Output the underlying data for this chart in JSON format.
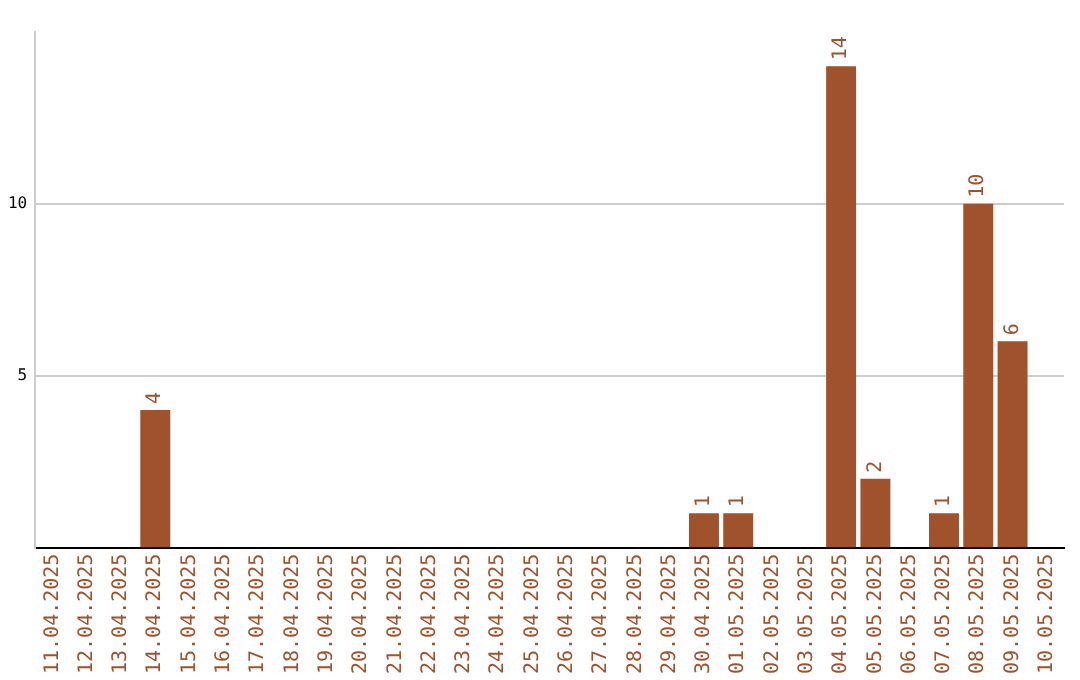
{
  "chart_data": {
    "type": "bar",
    "categories": [
      "11.04.2025",
      "12.04.2025",
      "13.04.2025",
      "14.04.2025",
      "15.04.2025",
      "16.04.2025",
      "17.04.2025",
      "18.04.2025",
      "19.04.2025",
      "20.04.2025",
      "21.04.2025",
      "22.04.2025",
      "23.04.2025",
      "24.04.2025",
      "25.04.2025",
      "26.04.2025",
      "27.04.2025",
      "28.04.2025",
      "29.04.2025",
      "30.04.2025",
      "01.05.2025",
      "02.05.2025",
      "03.05.2025",
      "04.05.2025",
      "05.05.2025",
      "06.05.2025",
      "07.05.2025",
      "08.05.2025",
      "09.05.2025",
      "10.05.2025"
    ],
    "values": [
      0,
      0,
      0,
      4,
      0,
      0,
      0,
      0,
      0,
      0,
      0,
      0,
      0,
      0,
      0,
      0,
      0,
      0,
      0,
      1,
      1,
      0,
      0,
      14,
      2,
      0,
      1,
      10,
      6,
      0
    ],
    "value_labels": [
      null,
      null,
      null,
      "4",
      null,
      null,
      null,
      null,
      null,
      null,
      null,
      null,
      null,
      null,
      null,
      null,
      null,
      null,
      null,
      "1",
      "1",
      null,
      null,
      "14",
      "2",
      null,
      "1",
      "10",
      "6",
      null
    ],
    "color": "#a0522d",
    "ylim": [
      0,
      15
    ],
    "yticks": [
      5,
      10
    ],
    "grid": "y"
  }
}
